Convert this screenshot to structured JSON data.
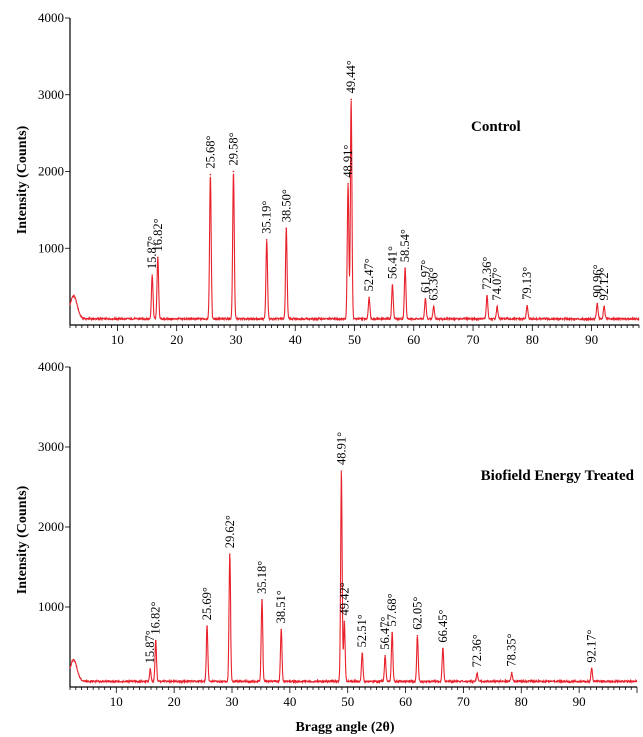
{
  "chart_data": [
    {
      "type": "line",
      "title": "Control",
      "xlabel": "",
      "ylabel": "Intensity (Counts)",
      "xlim": [
        2,
        98
      ],
      "ylim": [
        0,
        4000
      ],
      "x_ticks": [
        10,
        20,
        30,
        40,
        50,
        60,
        70,
        80,
        90
      ],
      "y_ticks": [
        1000,
        2000,
        3000,
        4000
      ],
      "line_color": "#e8212b",
      "baseline": 80,
      "peaks": [
        {
          "x": 2.6,
          "y": 380
        },
        {
          "x": 15.87,
          "y": 650
        },
        {
          "x": 16.82,
          "y": 880
        },
        {
          "x": 25.68,
          "y": 1960
        },
        {
          "x": 29.58,
          "y": 2000
        },
        {
          "x": 35.19,
          "y": 1110
        },
        {
          "x": 38.5,
          "y": 1260
        },
        {
          "x": 48.91,
          "y": 1840
        },
        {
          "x": 49.44,
          "y": 2940
        },
        {
          "x": 52.47,
          "y": 360
        },
        {
          "x": 56.41,
          "y": 520
        },
        {
          "x": 58.54,
          "y": 740
        },
        {
          "x": 61.97,
          "y": 340
        },
        {
          "x": 63.36,
          "y": 240
        },
        {
          "x": 72.36,
          "y": 380
        },
        {
          "x": 74.07,
          "y": 240
        },
        {
          "x": 79.13,
          "y": 250
        },
        {
          "x": 90.96,
          "y": 280
        },
        {
          "x": 92.12,
          "y": 240
        }
      ],
      "peak_labels": [
        {
          "text": "15.87°",
          "x": 15.87
        },
        {
          "text": "16.82°",
          "x": 16.82
        },
        {
          "text": "25.68°",
          "x": 25.68
        },
        {
          "text": "29.58°",
          "x": 29.58
        },
        {
          "text": "35.19°",
          "x": 35.19
        },
        {
          "text": "38.50°",
          "x": 38.5
        },
        {
          "text": "48.91°",
          "x": 48.91
        },
        {
          "text": "49.44°",
          "x": 49.44
        },
        {
          "text": "52.47°",
          "x": 52.47
        },
        {
          "text": "56.41°",
          "x": 56.41
        },
        {
          "text": "58.54°",
          "x": 58.54
        },
        {
          "text": "61.97°",
          "x": 61.97
        },
        {
          "text": "63.36°",
          "x": 63.36
        },
        {
          "text": "72.36°",
          "x": 72.36
        },
        {
          "text": "74.07°",
          "x": 74.07
        },
        {
          "text": "79.13°",
          "x": 79.13
        },
        {
          "text": "90.96°",
          "x": 90.96
        },
        {
          "text": "92.12°",
          "x": 92.12
        }
      ]
    },
    {
      "type": "line",
      "title": "Biofield Energy Treated",
      "xlabel": "Bragg angle (2θ)",
      "ylabel": "Intensity (Counts)",
      "xlim": [
        2,
        100
      ],
      "ylim": [
        0,
        4000
      ],
      "x_ticks": [
        10,
        20,
        30,
        40,
        50,
        60,
        70,
        80,
        90
      ],
      "y_ticks": [
        1000,
        2000,
        3000,
        4000
      ],
      "line_color": "#e8212b",
      "baseline": 70,
      "peaks": [
        {
          "x": 2.6,
          "y": 340
        },
        {
          "x": 15.87,
          "y": 220
        },
        {
          "x": 16.82,
          "y": 580
        },
        {
          "x": 25.69,
          "y": 760
        },
        {
          "x": 29.62,
          "y": 1660
        },
        {
          "x": 35.18,
          "y": 1090
        },
        {
          "x": 38.51,
          "y": 720
        },
        {
          "x": 48.91,
          "y": 2700
        },
        {
          "x": 49.42,
          "y": 820
        },
        {
          "x": 52.51,
          "y": 420
        },
        {
          "x": 56.47,
          "y": 390
        },
        {
          "x": 57.68,
          "y": 680
        },
        {
          "x": 62.05,
          "y": 640
        },
        {
          "x": 66.45,
          "y": 480
        },
        {
          "x": 72.36,
          "y": 170
        },
        {
          "x": 78.35,
          "y": 180
        },
        {
          "x": 92.17,
          "y": 230
        }
      ],
      "peak_labels": [
        {
          "text": "15.87°",
          "x": 15.87
        },
        {
          "text": "16.82°",
          "x": 16.82
        },
        {
          "text": "25.69°",
          "x": 25.69
        },
        {
          "text": "29.62°",
          "x": 29.62
        },
        {
          "text": "35.18°",
          "x": 35.18
        },
        {
          "text": "38.51°",
          "x": 38.51
        },
        {
          "text": "48.91°",
          "x": 48.91
        },
        {
          "text": "49.42°",
          "x": 49.42
        },
        {
          "text": "52.51°",
          "x": 52.51
        },
        {
          "text": "56.47°",
          "x": 56.47
        },
        {
          "text": "57.68°",
          "x": 57.68
        },
        {
          "text": "62.05°",
          "x": 62.05
        },
        {
          "text": "66.45°",
          "x": 66.45
        },
        {
          "text": "72.36°",
          "x": 72.36
        },
        {
          "text": "78.35°",
          "x": 78.35
        },
        {
          "text": "92.17°",
          "x": 92.17
        }
      ]
    }
  ]
}
